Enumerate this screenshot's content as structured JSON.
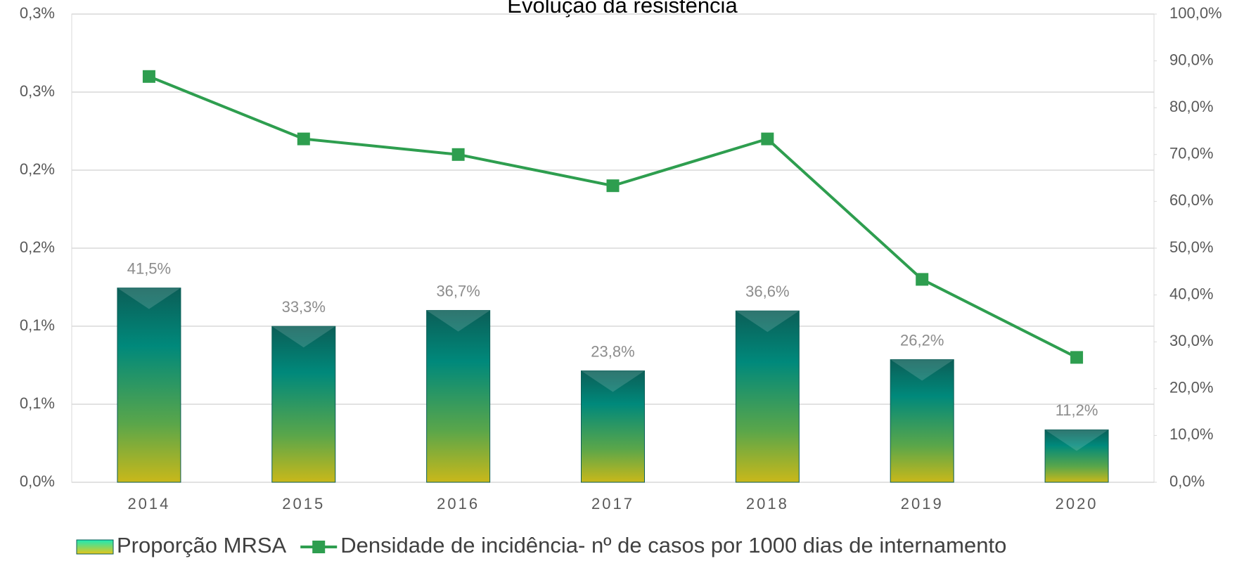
{
  "chart_data": {
    "type": "bar",
    "title": "Evolução da resistência",
    "categories": [
      "2014",
      "2015",
      "2016",
      "2017",
      "2018",
      "2019",
      "2020"
    ],
    "series": [
      {
        "name": "Proporção MRSA",
        "type": "bar",
        "axis": "y2",
        "color": "#00897b",
        "values": [
          41.5,
          33.3,
          36.7,
          23.8,
          36.6,
          26.2,
          11.2
        ],
        "value_labels": [
          "41,5%",
          "33,3%",
          "36,7%",
          "23,8%",
          "36,6%",
          "26,2%",
          "11,2%"
        ]
      },
      {
        "name": "Densidade de incidência- nº de casos por 1000 dias de internamento",
        "type": "line",
        "color": "#2e9e4f",
        "values": [
          0.26,
          0.22,
          0.21,
          0.19,
          0.22,
          0.13,
          0.08
        ]
      }
    ],
    "ylim": [
      0,
      0.3
    ],
    "yticks": [
      {
        "value": 0,
        "label": "0,0%"
      },
      {
        "value": 0.05,
        "label": "0,1%"
      },
      {
        "value": 0.1,
        "label": "0,1%"
      },
      {
        "value": 0.15,
        "label": "0,2%"
      },
      {
        "value": 0.2,
        "label": "0,2%"
      },
      {
        "value": 0.25,
        "label": "0,3%"
      },
      {
        "value": 0.3,
        "label": "0,3%"
      }
    ],
    "y2lim": [
      0,
      100
    ],
    "y2ticks": [
      {
        "value": 0,
        "label": "0,0%"
      },
      {
        "value": 10,
        "label": "10,0%"
      },
      {
        "value": 20,
        "label": "20,0%"
      },
      {
        "value": 30,
        "label": "30,0%"
      },
      {
        "value": 40,
        "label": "40,0%"
      },
      {
        "value": 50,
        "label": "50,0%"
      },
      {
        "value": 60,
        "label": "60,0%"
      },
      {
        "value": 70,
        "label": "70,0%"
      },
      {
        "value": 80,
        "label": "80,0%"
      },
      {
        "value": 90,
        "label": "90,0%"
      },
      {
        "value": 100,
        "label": "100,0%"
      }
    ],
    "grid": true,
    "legend": "bottom"
  }
}
